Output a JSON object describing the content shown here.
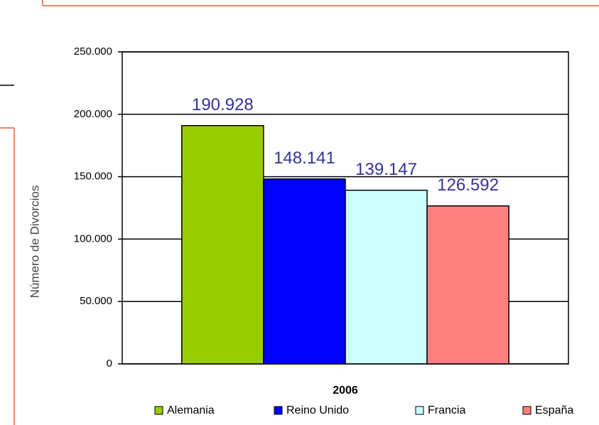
{
  "chart_data": {
    "type": "bar",
    "categories": [
      "2006"
    ],
    "y_label": "Número de Divorcios",
    "series": [
      {
        "name": "Alemania",
        "color": "#99cc00",
        "values": [
          190928
        ],
        "value_labels": [
          "190.928"
        ]
      },
      {
        "name": "Reino Unido",
        "color": "#0000ff",
        "values": [
          148141
        ],
        "value_labels": [
          "148.141"
        ]
      },
      {
        "name": "Francia",
        "color": "#ccffff",
        "values": [
          139147
        ],
        "value_labels": [
          "139.147"
        ]
      },
      {
        "name": "España",
        "color": "#ff8080",
        "values": [
          126592
        ],
        "value_labels": [
          "126.592"
        ]
      }
    ],
    "ylim": [
      0,
      250000
    ],
    "yticks": [
      0,
      {
        "value": 50000,
        "label": "50.000"
      },
      {
        "value": 100000,
        "label": "100.000"
      },
      {
        "value": 150000,
        "label": "150.000"
      },
      {
        "value": 200000,
        "label": "200.000"
      },
      {
        "value": 250000,
        "label": "250.000"
      }
    ],
    "grid": true
  }
}
